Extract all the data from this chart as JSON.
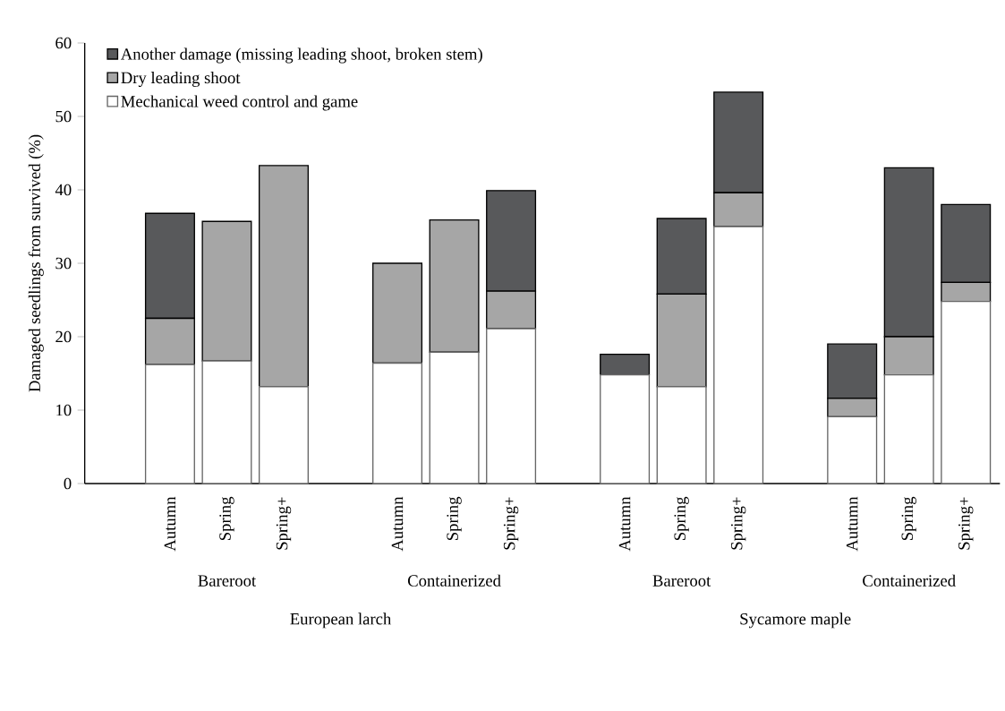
{
  "chart_data": {
    "type": "bar",
    "stacked": true,
    "ylabel": "Damaged seedlings from survived (%)",
    "categories": [
      "Autumn",
      "Spring",
      "Spring+",
      null,
      "Autumn",
      "Spring",
      "Spring+",
      null,
      "Autumn",
      "Spring",
      "Spring+",
      null,
      "Autumn",
      "Spring",
      "Spring+"
    ],
    "series": [
      {
        "name": "Mechanical weed control and game",
        "color": "#ffffff",
        "values": [
          16.2,
          16.7,
          13.2,
          null,
          16.4,
          17.9,
          21.1,
          null,
          14.8,
          13.2,
          35.0,
          null,
          9.1,
          14.8,
          24.8
        ]
      },
      {
        "name": "Dry leading shoot",
        "color": "#a6a6a6",
        "values": [
          6.3,
          19.0,
          30.1,
          null,
          13.6,
          18.0,
          5.1,
          null,
          0,
          12.6,
          4.6,
          null,
          2.5,
          5.2,
          2.6
        ]
      },
      {
        "name": "Another damage (missing leading shoot, broken stem)",
        "color": "#58595b",
        "values": [
          14.3,
          0,
          0,
          null,
          0,
          0,
          13.7,
          null,
          2.8,
          10.3,
          13.7,
          null,
          7.4,
          23.0,
          10.6
        ]
      }
    ],
    "ylim": [
      0,
      60
    ],
    "yticks": [
      0,
      10,
      20,
      30,
      40,
      50,
      60
    ],
    "legend": "top left",
    "annotations": [
      "Bareroot",
      "Containerized",
      "Bareroot",
      "Containerized",
      "European larch",
      "Sycamore maple"
    ]
  }
}
